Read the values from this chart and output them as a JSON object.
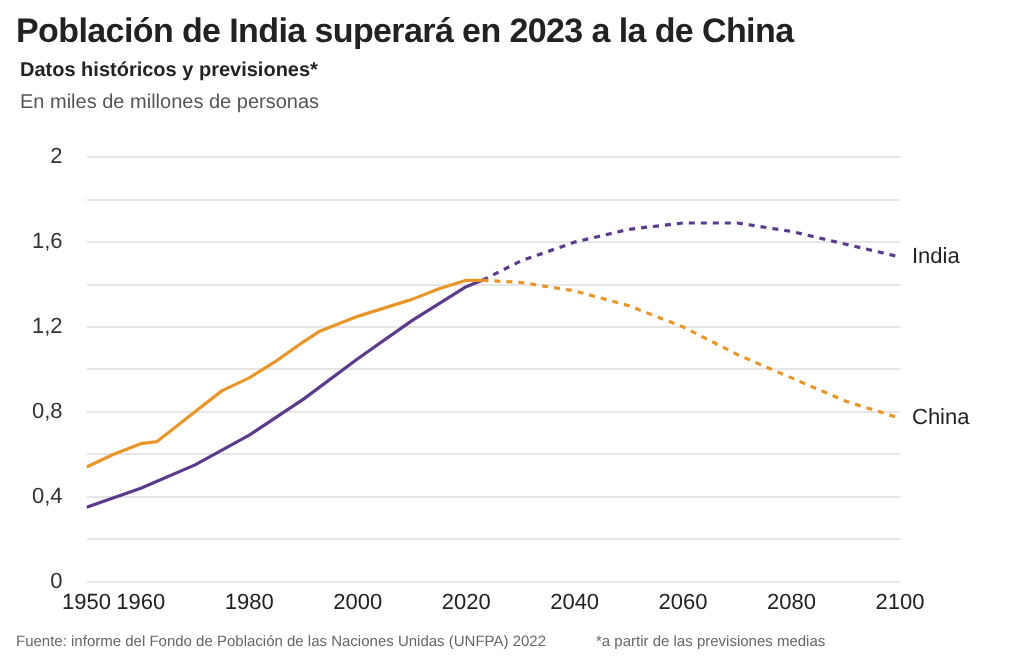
{
  "chart_data": {
    "type": "line",
    "title": "Población de India superará en 2023 a la de China",
    "subtitle": "Datos históricos y previsiones*",
    "ylabel": "En miles de millones de personas",
    "xlim": [
      1950,
      2100
    ],
    "xticks": [
      1950,
      1960,
      1980,
      2000,
      2020,
      2040,
      2060,
      2080,
      2100
    ],
    "ylim": [
      0,
      2
    ],
    "yticks": [
      0,
      {
        "value": 0.2,
        "label": null
      },
      {
        "value": 0.4,
        "label": "0,4"
      },
      {
        "value": 0.6,
        "label": null
      },
      {
        "value": 0.8,
        "label": "0,8"
      },
      {
        "value": 1.0,
        "label": null
      },
      {
        "value": 1.2,
        "label": "1,2"
      },
      {
        "value": 1.4,
        "label": null
      },
      {
        "value": 1.6,
        "label": "1,6"
      },
      {
        "value": 1.8,
        "label": null
      },
      2
    ],
    "grid": "y",
    "legend": false,
    "marker": "none",
    "series": [
      {
        "color": "#e8962a",
        "line_style": "solid",
        "x": [
          1950,
          1955,
          1960,
          1963,
          1965,
          1970,
          1975,
          1980,
          1985,
          1990,
          1993,
          2000,
          2005,
          2010,
          2015,
          2020,
          2023
        ],
        "values": [
          0.54,
          0.6,
          0.65,
          0.66,
          0.7,
          0.8,
          0.9,
          0.96,
          1.04,
          1.13,
          1.18,
          1.25,
          1.29,
          1.33,
          1.38,
          1.42,
          1.42
        ]
      },
      {
        "name": "China",
        "color": "#e8962a",
        "line_style": "dashed",
        "x": [
          2023,
          2030,
          2040,
          2050,
          2060,
          2070,
          2080,
          2090,
          2100
        ],
        "values": [
          1.42,
          1.41,
          1.37,
          1.3,
          1.2,
          1.07,
          0.96,
          0.85,
          0.77
        ]
      },
      {
        "color": "#5b3a8c",
        "line_style": "solid",
        "x": [
          1950,
          1960,
          1970,
          1980,
          1990,
          2000,
          2010,
          2020,
          2023
        ],
        "values": [
          0.35,
          0.44,
          0.55,
          0.69,
          0.86,
          1.05,
          1.23,
          1.39,
          1.42
        ]
      },
      {
        "name": "India",
        "color": "#5b3a8c",
        "line_style": "dashed",
        "x": [
          2023,
          2030,
          2040,
          2050,
          2060,
          2070,
          2080,
          2090,
          2100
        ],
        "values": [
          1.42,
          1.51,
          1.6,
          1.66,
          1.69,
          1.69,
          1.65,
          1.59,
          1.53
        ]
      }
    ],
    "annotations": [
      "Fuente: informe del Fondo de Población de las Naciones Unidas (UNFPA) 2022",
      "*a partir de las previsiones medias"
    ]
  }
}
